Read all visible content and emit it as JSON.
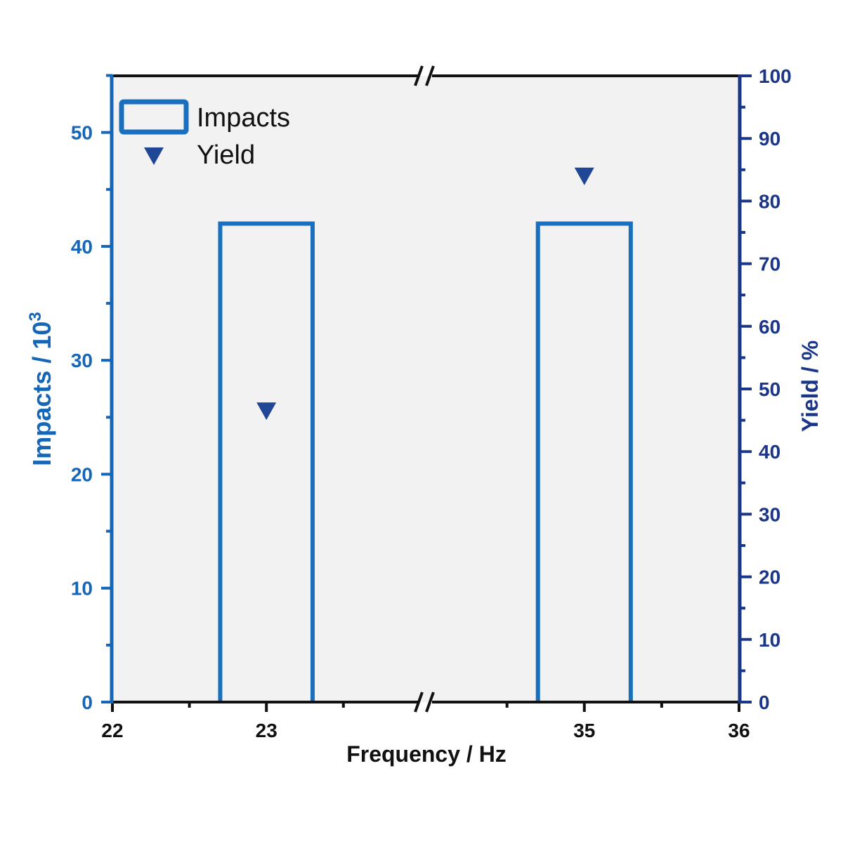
{
  "chart_data": {
    "type": "bar",
    "xlabel": "Frequency / Hz",
    "ylabel_left": "Impacts / 10",
    "ylabel_left_superscript": "3",
    "ylabel_right": "Yield / %",
    "x_segments": [
      [
        22,
        24.03
      ],
      [
        33.97,
        36
      ]
    ],
    "x_ticks": [
      22,
      23,
      35,
      36
    ],
    "x_tick_labels": [
      "22",
      "23",
      "35",
      "36"
    ],
    "x_minor_ticks": [
      22.5,
      23.5,
      34.5,
      35.5
    ],
    "ylim_left": [
      0,
      55
    ],
    "ylim_right": [
      0,
      100
    ],
    "y_left_ticks": [
      0,
      10,
      20,
      30,
      40,
      50
    ],
    "y_left_tick_labels": [
      "0",
      "10",
      "20",
      "30",
      "40",
      "50"
    ],
    "y_right_ticks": [
      0,
      10,
      20,
      30,
      40,
      50,
      60,
      70,
      80,
      90,
      100
    ],
    "y_right_tick_labels": [
      "0",
      "10",
      "20",
      "30",
      "40",
      "50",
      "60",
      "70",
      "80",
      "90",
      "100"
    ],
    "bar_width": 0.6,
    "series": [
      {
        "name": "Impacts",
        "kind": "bar",
        "axis": "left",
        "x": [
          23,
          35
        ],
        "values": [
          42,
          42
        ]
      },
      {
        "name": "Yield",
        "kind": "scatter",
        "marker": "triangle-down",
        "axis": "right",
        "x": [
          23,
          35
        ],
        "values": [
          46.5,
          84
        ]
      }
    ],
    "legend": {
      "placement": "top-left",
      "entries": [
        "Impacts",
        "Yield"
      ]
    },
    "colors": {
      "left_axis": "#1666b8",
      "right_axis": "#1b3588",
      "bar": "#1a6fbf",
      "marker": "#1f4796",
      "plot_bg": "#f2f2f2"
    }
  }
}
